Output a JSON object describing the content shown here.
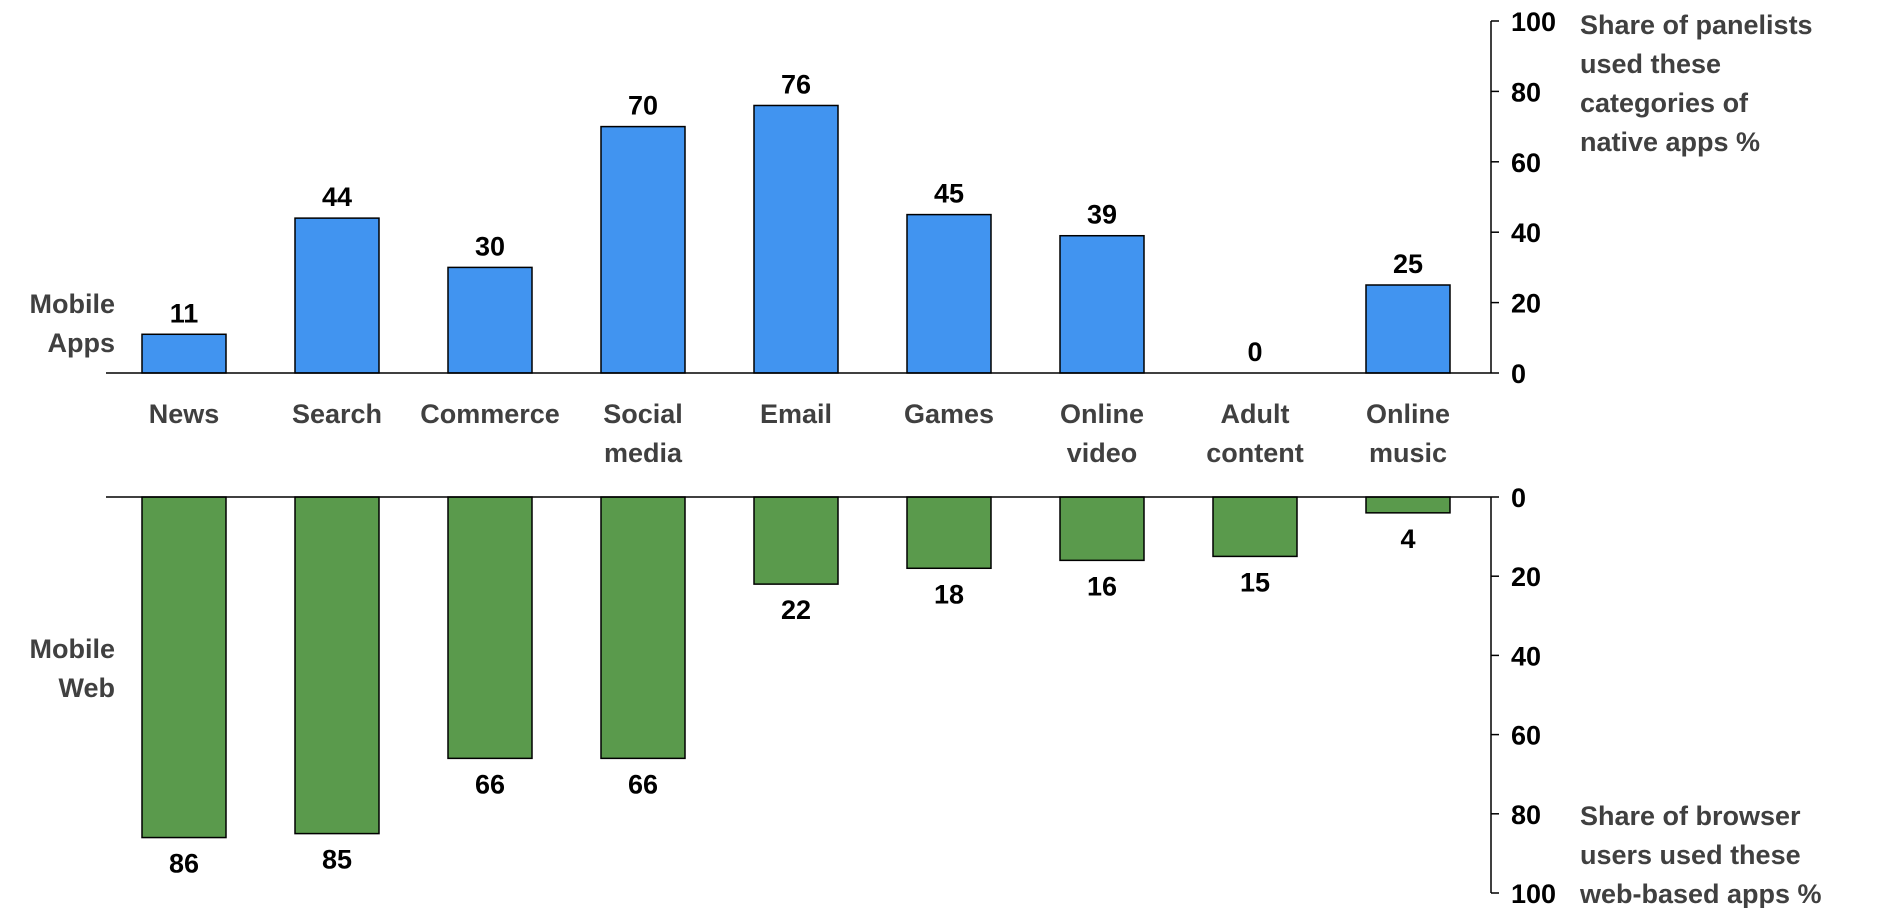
{
  "chart_data": {
    "type": "bar",
    "categories": [
      [
        "News"
      ],
      [
        "Search"
      ],
      [
        "Commerce"
      ],
      [
        "Social",
        "media"
      ],
      [
        "Email"
      ],
      [
        "Games"
      ],
      [
        "Online",
        "video"
      ],
      [
        "Adult",
        "content"
      ],
      [
        "Online",
        "music"
      ]
    ],
    "series": [
      {
        "name": "Mobile Apps",
        "row_label": [
          "Mobile",
          "Apps"
        ],
        "values": [
          11,
          44,
          30,
          70,
          76,
          45,
          39,
          0,
          25
        ],
        "color": "#4194f0",
        "axis_title": [
          "Share of panelists",
          "used these",
          "categories of",
          "native apps %"
        ],
        "ylim": [
          0,
          100
        ],
        "ticks": [
          0,
          20,
          40,
          60,
          80,
          100
        ]
      },
      {
        "name": "Mobile Web",
        "row_label": [
          "Mobile",
          "Web"
        ],
        "values": [
          86,
          85,
          66,
          66,
          22,
          18,
          16,
          15,
          4
        ],
        "color": "#5a9a4c",
        "axis_title": [
          "Share of browser",
          "users used these",
          "web-based apps  %"
        ],
        "ylim": [
          0,
          100
        ],
        "ticks": [
          0,
          20,
          40,
          60,
          80,
          100
        ]
      }
    ]
  }
}
